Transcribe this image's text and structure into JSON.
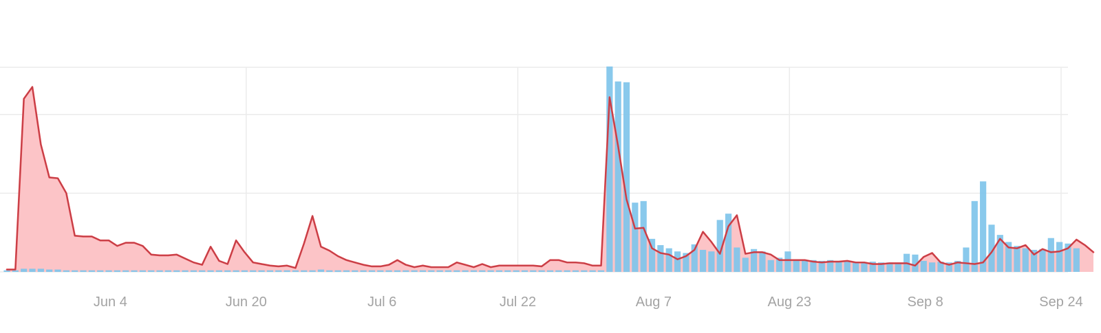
{
  "chart_data": {
    "type": "bar",
    "title": "",
    "xlabel": "",
    "ylabel": "",
    "grid": true,
    "x_tick_labels": [
      "Jun 4",
      "Jun 20",
      "Jul 6",
      "Jul 22",
      "Aug 7",
      "Aug 23",
      "Sep 8",
      "Sep 24"
    ],
    "x_tick_dates": [
      "2023-06-04",
      "2023-06-20",
      "2023-07-06",
      "2023-07-22",
      "2023-08-07",
      "2023-08-23",
      "2023-09-08",
      "2023-09-24"
    ],
    "x_start": "2023-05-22",
    "x_end": "2023-09-24",
    "ylim": [
      0,
      26
    ],
    "ygrid": [
      0,
      10,
      20,
      26
    ],
    "colors": {
      "bars": "#7fc4ea",
      "line": "#e0434b",
      "area": "#fcc4c7",
      "grid": "#ebebeb"
    },
    "series": [
      {
        "values": [
          0.2,
          0.2,
          0.4,
          0.4,
          0.4,
          0.3,
          0.3,
          0.2,
          0.2,
          0.2,
          0.2,
          0.2,
          0.2,
          0.2,
          0.2,
          0.2,
          0.2,
          0.2,
          0.2,
          0.2,
          0.2,
          0.2,
          0.2,
          0.2,
          0.2,
          0.2,
          0.2,
          0.2,
          0.2,
          0.2,
          0.2,
          0.2,
          0.2,
          0.2,
          0.2,
          0.2,
          0.2,
          0.3,
          0.2,
          0.2,
          0.2,
          0.2,
          0.2,
          0.2,
          0.2,
          0.2,
          0.2,
          0.2,
          0.2,
          0.2,
          0.2,
          0.2,
          0.2,
          0.2,
          0.2,
          0.2,
          0.2,
          0.2,
          0.2,
          0.2,
          0.2,
          0.2,
          0.2,
          0.2,
          0.2,
          0.2,
          0.2,
          0.2,
          0.2,
          0.2,
          0.2,
          26.1,
          24.2,
          24.1,
          8.8,
          9.0,
          4.2,
          3.4,
          3.0,
          2.6,
          2.4,
          3.5,
          2.8,
          2.6,
          6.6,
          7.4,
          3.1,
          1.8,
          2.9,
          2.6,
          1.5,
          1.8,
          2.6,
          1.6,
          1.4,
          1.5,
          1.4,
          1.5,
          1.3,
          1.3,
          1.2,
          1.1,
          1.3,
          1.2,
          1.2,
          1.1,
          2.3,
          2.2,
          1.4,
          1.2,
          1.3,
          1.2,
          1.4,
          3.1,
          9.0,
          11.5,
          6.0,
          4.7,
          3.8,
          3.3,
          3.0,
          2.8,
          2.9,
          4.3,
          3.8,
          3.6,
          3.0
        ],
        "color": "#7fc4ea"
      },
      {
        "values": [
          0.3,
          0.3,
          22.0,
          23.5,
          16.2,
          12.0,
          11.9,
          10.0,
          4.6,
          4.5,
          4.5,
          4.0,
          4.0,
          3.3,
          3.7,
          3.7,
          3.3,
          2.2,
          2.1,
          2.1,
          2.2,
          1.7,
          1.2,
          0.9,
          3.2,
          1.4,
          1.0,
          4.0,
          2.5,
          1.2,
          1.0,
          0.8,
          0.7,
          0.8,
          0.5,
          3.6,
          7.1,
          3.2,
          2.7,
          2.0,
          1.5,
          1.2,
          0.9,
          0.7,
          0.7,
          0.9,
          1.5,
          0.9,
          0.6,
          0.8,
          0.6,
          0.6,
          0.6,
          1.2,
          0.9,
          0.6,
          1.0,
          0.6,
          0.8,
          0.8,
          0.8,
          0.8,
          0.8,
          0.7,
          1.5,
          1.5,
          1.2,
          1.2,
          1.1,
          0.8,
          0.8,
          22.2,
          16.0,
          9.2,
          5.5,
          5.6,
          3.0,
          2.4,
          2.2,
          1.6,
          2.0,
          2.8,
          5.1,
          3.8,
          2.3,
          5.8,
          7.2,
          2.3,
          2.5,
          2.5,
          2.2,
          1.5,
          1.5,
          1.5,
          1.5,
          1.3,
          1.2,
          1.3,
          1.3,
          1.4,
          1.2,
          1.2,
          1.0,
          1.0,
          1.1,
          1.1,
          1.1,
          0.8,
          1.9,
          2.4,
          1.2,
          0.9,
          1.2,
          1.1,
          1.0,
          1.2,
          2.5,
          4.2,
          3.1,
          3.0,
          3.4,
          2.2,
          2.9,
          2.5,
          2.6,
          3.0,
          4.1,
          3.4,
          2.5
        ],
        "color": "#e0434b"
      }
    ]
  }
}
